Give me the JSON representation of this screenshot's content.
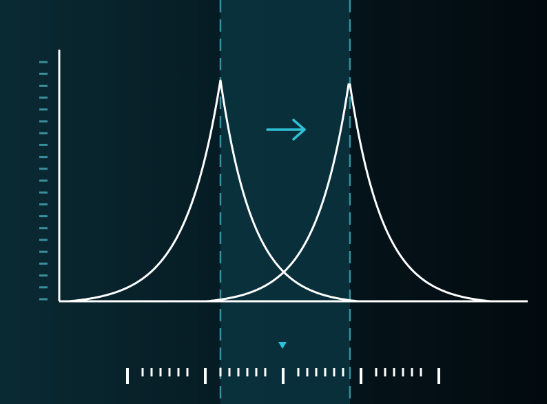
{
  "diagram": {
    "description_type": "shifted-peak-curves",
    "colors": {
      "background": "#061c24",
      "highlight_band": "#0b3540",
      "curve": "#ffffff",
      "axis": "#ffffff",
      "accent": "#2aa7b8",
      "arrow": "#2fc0d6",
      "dashes": "#3a8fa0"
    },
    "icons": {
      "arrow": "right-arrow-icon",
      "marker": "down-triangle-marker-icon"
    },
    "arrow_glyph": "→",
    "marker_glyph": "▼"
  }
}
